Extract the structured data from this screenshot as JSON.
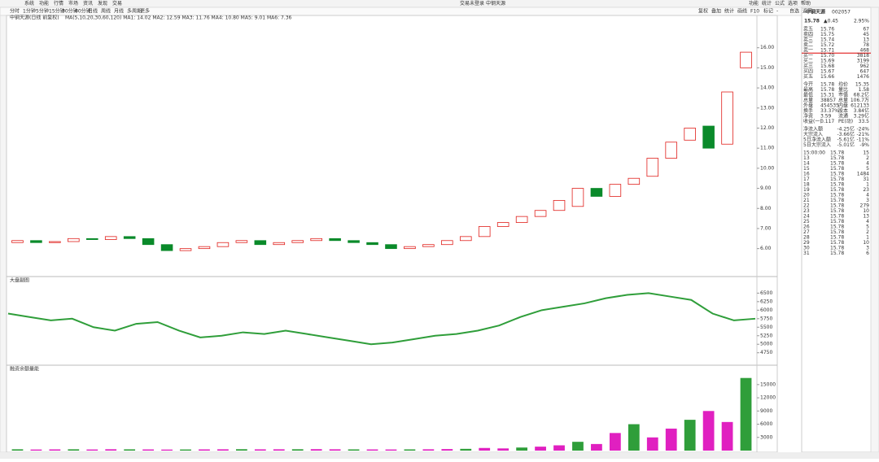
{
  "menu": [
    "系统",
    "功能",
    "行情",
    "市场",
    "资讯",
    "发现",
    "交易"
  ],
  "center_title": [
    "交易未登录",
    "中钢天源"
  ],
  "menu_right": [
    "功能",
    "统计",
    "公式",
    "选项",
    "帮助"
  ],
  "toolbar": [
    "分时",
    "1分钟",
    "5分钟",
    "15分钟",
    "30分钟",
    "60分钟",
    "日线",
    "周线",
    "月线",
    "多周期",
    "更多"
  ],
  "right_tools": [
    "复权",
    "叠加",
    "统计",
    "画线",
    "F10",
    "标记",
    "-",
    "自选",
    "返回"
  ],
  "quote": {
    "name": "中钢天源",
    "code": "002057",
    "price": "15.78",
    "change": "▲0.45",
    "pct": "2.95%"
  },
  "order_book": [
    [
      "卖五",
      "15.76",
      "67"
    ],
    [
      "卖四",
      "15.75",
      "45"
    ],
    [
      "卖三",
      "15.74",
      "13"
    ],
    [
      "卖二",
      "15.72",
      "78"
    ],
    [
      "卖一",
      "15.71",
      "468"
    ],
    [
      "买一",
      "15.70",
      "3818"
    ],
    [
      "买二",
      "15.69",
      "3199"
    ],
    [
      "买三",
      "15.68",
      "962"
    ],
    [
      "买四",
      "15.67",
      "647"
    ],
    [
      "买五",
      "15.66",
      "1476"
    ]
  ],
  "stats": [
    [
      "今开",
      "15.78",
      "均价",
      "15.35"
    ],
    [
      "最高",
      "15.78",
      "量比",
      "1.58"
    ],
    [
      "最低",
      "15.31",
      "市值",
      "68.2亿"
    ],
    [
      "总量",
      "38857",
      "总量",
      "106.7万"
    ],
    [
      "外盘",
      "454535",
      "内盘",
      "612133"
    ],
    [
      "换手",
      "33.37%",
      "股本",
      "3.84亿"
    ],
    [
      "净资",
      "3.59",
      "流通",
      "3.29亿"
    ],
    [
      "收益(一)",
      "0.117",
      "PE(动)",
      "33.5"
    ]
  ],
  "flows": [
    [
      "净流入额",
      "-4.25亿",
      "-24%"
    ],
    [
      "大宗流入",
      "-3.66亿",
      "-21%"
    ],
    [
      "5日净流入额",
      "-5.61亿",
      "-11%"
    ],
    [
      "5日大宗流入",
      "-5.01亿",
      "-9%"
    ]
  ],
  "ticks": [
    [
      "15:00:00",
      "15.78",
      "15"
    ],
    [
      "13",
      "15.78",
      "2"
    ],
    [
      "14",
      "15.78",
      "4"
    ],
    [
      "15",
      "15.78",
      "5"
    ],
    [
      "16",
      "15.78",
      "1484"
    ],
    [
      "17",
      "15.78",
      "31"
    ],
    [
      "18",
      "15.78",
      "1"
    ],
    [
      "19",
      "15.78",
      "23"
    ],
    [
      "20",
      "15.78",
      "4"
    ],
    [
      "21",
      "15.78",
      "3"
    ],
    [
      "22",
      "15.78",
      "279"
    ],
    [
      "23",
      "15.78",
      "10"
    ],
    [
      "24",
      "15.78",
      "13"
    ],
    [
      "25",
      "15.78",
      "4"
    ],
    [
      "26",
      "15.78",
      "5"
    ],
    [
      "27",
      "15.78",
      "2"
    ],
    [
      "28",
      "15.78",
      "1"
    ],
    [
      "29",
      "15.78",
      "10"
    ],
    [
      "30",
      "15.78",
      "3"
    ],
    [
      "31",
      "15.78",
      "6"
    ]
  ],
  "chart_data": [
    {
      "type": "candlestick",
      "title": "中钢天源(日线 前复权)",
      "legend": "MA(5,10,20,30,60,120)  MA1: 14.02  MA2: 12.59  MA3: 11.76  MA4: 10.80  MA5: 9.01  MA6: 7.36",
      "open": [
        6.3,
        6.4,
        6.3,
        6.35,
        6.5,
        6.45,
        6.6,
        6.5,
        6.2,
        5.9,
        6.0,
        6.1,
        6.3,
        6.4,
        6.2,
        6.3,
        6.4,
        6.5,
        6.4,
        6.3,
        6.2,
        6.0,
        6.1,
        6.2,
        6.4,
        6.6,
        7.1,
        7.3,
        7.6,
        7.9,
        8.1,
        9.0,
        8.6,
        9.2,
        9.6,
        10.5,
        11.4,
        12.1,
        11.2,
        15.0
      ],
      "close": [
        6.4,
        6.3,
        6.35,
        6.5,
        6.45,
        6.6,
        6.5,
        6.2,
        5.9,
        6.0,
        6.1,
        6.3,
        6.4,
        6.2,
        6.3,
        6.4,
        6.5,
        6.4,
        6.3,
        6.2,
        6.0,
        6.1,
        6.2,
        6.4,
        6.6,
        7.1,
        7.3,
        7.6,
        7.9,
        8.4,
        9.0,
        8.6,
        9.2,
        9.5,
        10.5,
        11.3,
        12.0,
        11.0,
        13.8,
        15.78
      ],
      "up_color": "#e0201c",
      "down_color": "#0a8a2a",
      "ylim": [
        5.5,
        17
      ],
      "yticks": [
        {
          "value": 6,
          "label": "6.00"
        },
        {
          "value": 7,
          "label": "7.00"
        },
        {
          "value": 8,
          "label": "8.00"
        },
        {
          "value": 9,
          "label": "9.00"
        },
        {
          "value": 10,
          "label": "10.00"
        },
        {
          "value": 11,
          "label": "11.00"
        },
        {
          "value": 12,
          "label": "12.00"
        },
        {
          "value": 13,
          "label": "13.00"
        },
        {
          "value": 14,
          "label": "14.00"
        },
        {
          "value": 15,
          "label": "15.00"
        },
        {
          "value": 16,
          "label": "16.00"
        }
      ]
    },
    {
      "type": "line",
      "title": "大盘副图",
      "color": "#2f9e3a",
      "values": [
        5900,
        5800,
        5700,
        5750,
        5500,
        5400,
        5600,
        5650,
        5400,
        5200,
        5250,
        5350,
        5300,
        5400,
        5300,
        5200,
        5100,
        5000,
        5050,
        5150,
        5250,
        5300,
        5400,
        5550,
        5800,
        6000,
        6100,
        6200,
        6350,
        6450,
        6500,
        6400,
        6300,
        5900,
        5700,
        5750
      ],
      "ylim": [
        4600,
        6700
      ],
      "yticks": [
        4750,
        5000,
        5250,
        5500,
        5750,
        6000,
        6250,
        6500
      ]
    },
    {
      "type": "bar",
      "title": "融资余额量能",
      "color": "#e020c0",
      "values": [
        300,
        250,
        280,
        300,
        260,
        310,
        290,
        270,
        240,
        260,
        280,
        300,
        320,
        290,
        300,
        310,
        330,
        300,
        280,
        270,
        260,
        280,
        300,
        350,
        400,
        600,
        500,
        700,
        900,
        1200,
        2000,
        1500,
        4000,
        6000,
        3000,
        5000,
        7000,
        9000,
        6500,
        16500
      ],
      "ylim": [
        0,
        17000
      ],
      "yticks": [
        3000,
        6000,
        9000,
        12000,
        15000
      ]
    }
  ]
}
